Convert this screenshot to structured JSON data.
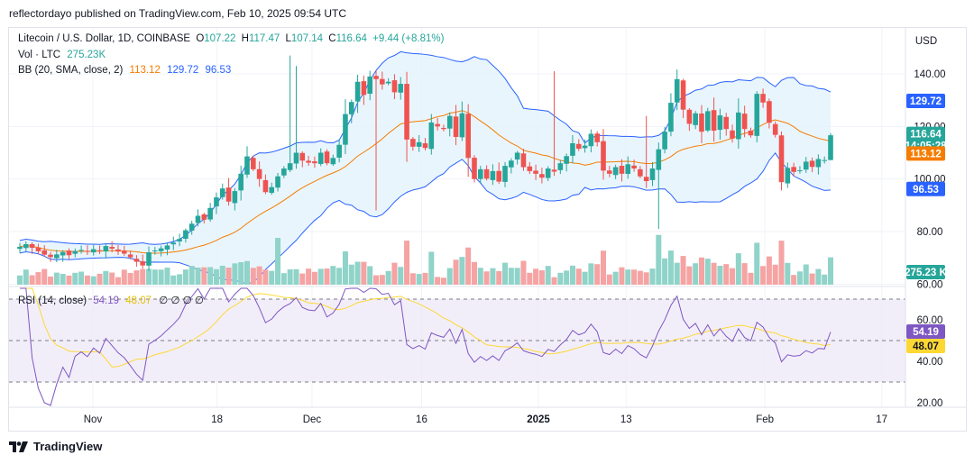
{
  "header": {
    "publish_line": "reflectordayo published on TradingView.com, Feb 10, 2025 09:54 UTC"
  },
  "footer": {
    "brand": "TradingView",
    "logo_icon": "tradingview-logo-icon"
  },
  "colors": {
    "up": "#26a69a",
    "down": "#ef5350",
    "vol_up": "#8fd3c9",
    "vol_down": "#f5a3a3",
    "bb_upper": "#2962ff",
    "bb_basis": "#f57c00",
    "bb_fill": "#e3f2fd",
    "rsi_line": "#7e57c2",
    "rsi_ma": "#fdd835",
    "rsi_band": "#ede7f6",
    "grid": "#f0f3fa",
    "text": "#131722"
  },
  "chart_data": {
    "type": "candlestick",
    "legend": {
      "symbol": "Litecoin / U.S. Dollar, 1D, COINBASE",
      "open_label": "O",
      "open": "107.22",
      "high_label": "H",
      "high": "117.47",
      "low_label": "L",
      "low": "107.14",
      "close_label": "C",
      "close": "116.64",
      "change": "+9.44 (+8.81%)",
      "vol_label": "Vol · LTC",
      "vol_value": "275.23K",
      "bb_label": "BB (20, SMA, close, 2)",
      "bb_basis": "113.12",
      "bb_upper": "129.72",
      "bb_lower": "96.53",
      "rsi_label": "RSI (14, close)",
      "rsi_value": "54.19",
      "rsi_ma": "48.07",
      "rsi_extra": "∅ ∅ ∅ ∅"
    },
    "currency": "USD",
    "price_axis": {
      "ticks": [
        "140.00",
        "120.00",
        "100.00",
        "80.00",
        "60.00"
      ],
      "range": [
        60,
        150
      ]
    },
    "rsi_axis": {
      "ticks": [
        "60.00",
        "40.00",
        "20.00"
      ],
      "range": [
        20,
        80
      ],
      "bands": [
        70,
        50,
        30
      ]
    },
    "x_ticks": [
      {
        "label": "Nov",
        "date": "2024-11-01"
      },
      {
        "label": "18",
        "date": "2024-11-18"
      },
      {
        "label": "Dec",
        "date": "2024-12-01"
      },
      {
        "label": "16",
        "date": "2024-12-16"
      },
      {
        "label": "2025",
        "date": "2025-01-01"
      },
      {
        "label": "13",
        "date": "2025-01-13"
      },
      {
        "label": "Feb",
        "date": "2025-02-01"
      },
      {
        "label": "17",
        "date": "2025-02-17"
      }
    ],
    "date_range": {
      "start": "2024-10-22",
      "end": "2025-02-10"
    },
    "price_labels": {
      "last": "116.64",
      "countdown": "14:05:28",
      "bb_upper": "129.72",
      "bb_basis": "113.12",
      "bb_lower": "96.53",
      "volume": "275.23 K",
      "rsi": "54.19",
      "rsi_ma": "48.07"
    },
    "closes": [
      74.2,
      75.2,
      73.8,
      72.5,
      71.2,
      70.3,
      71.3,
      72.2,
      71.0,
      72.6,
      73.0,
      72.4,
      73.3,
      72.6,
      74.5,
      73.5,
      72.4,
      71.6,
      70.2,
      68.5,
      67.1,
      72.1,
      72.8,
      73.6,
      74.7,
      75.8,
      77.2,
      80.5,
      83.0,
      86.0,
      84.5,
      89.0,
      93.0,
      96.4,
      91.4,
      95.4,
      102.0,
      108.6,
      103.7,
      100.0,
      95.0,
      96.9,
      101.0,
      104.0,
      106.0,
      110.0,
      107.0,
      106.2,
      106.0,
      110.0,
      106.0,
      108.0,
      113.0,
      124.7,
      129.3,
      137.0,
      132.0,
      139.0,
      138.0,
      136.0,
      137.0,
      133.0,
      136.2,
      115.0,
      112.3,
      114.0,
      111.8,
      121.5,
      120.0,
      119.0,
      124.0,
      116.0,
      125.0,
      108.0,
      100.0,
      103.7,
      100.1,
      103.0,
      99.0,
      105.0,
      107.0,
      110.0,
      104.5,
      103.0,
      102.0,
      100.5,
      104.0,
      102.8,
      106.0,
      108.7,
      113.6,
      111.5,
      112.7,
      117.2,
      114.0,
      103.2,
      102.0,
      104.5,
      102.0,
      105.6,
      104.0,
      101.0,
      99.2,
      104.0,
      111.3,
      118.0,
      129.0,
      138.0,
      126.4,
      121.0,
      125.0,
      118.0,
      125.8,
      118.4,
      124.2,
      119.0,
      115.4,
      125.3,
      119.0,
      116.6,
      132.4,
      129.1,
      121.4,
      116.8,
      98.8,
      104.2,
      102.7,
      103.3,
      106.6,
      104.6,
      107.6,
      107.2,
      116.64
    ],
    "volume_range": [
      0,
      275
    ]
  }
}
